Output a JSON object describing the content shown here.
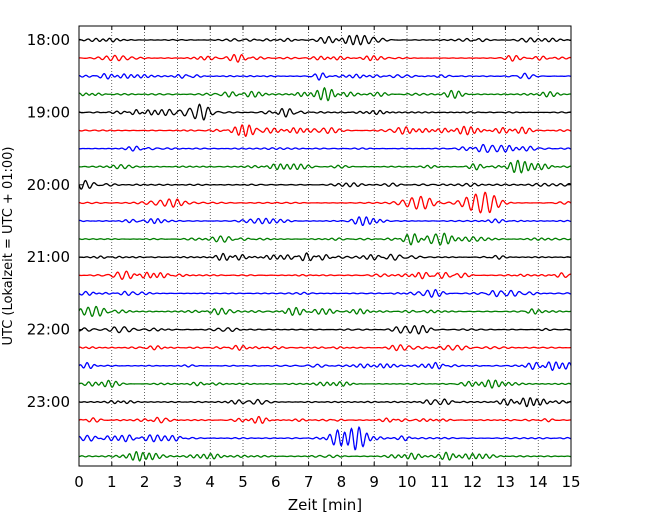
{
  "chart_data": {
    "type": "line",
    "title": "",
    "xlabel": "Zeit  [min]",
    "ylabel": "UTC (Lokalzeit = UTC + 01:00)",
    "xlim": [
      0,
      15
    ],
    "x_ticks": [
      0,
      1,
      2,
      3,
      4,
      5,
      6,
      7,
      8,
      9,
      10,
      11,
      12,
      13,
      14,
      15
    ],
    "y_tick_labels": [
      "18:00",
      "19:00",
      "20:00",
      "21:00",
      "22:00",
      "23:00"
    ],
    "rows_per_hour": 4,
    "row_count": 24,
    "row_minutes": 15,
    "trace_colors": [
      "#000000",
      "#ff0000",
      "#0000ff",
      "#007f00"
    ],
    "grid": "vertical dotted lines at each minute",
    "legend": "none"
  }
}
